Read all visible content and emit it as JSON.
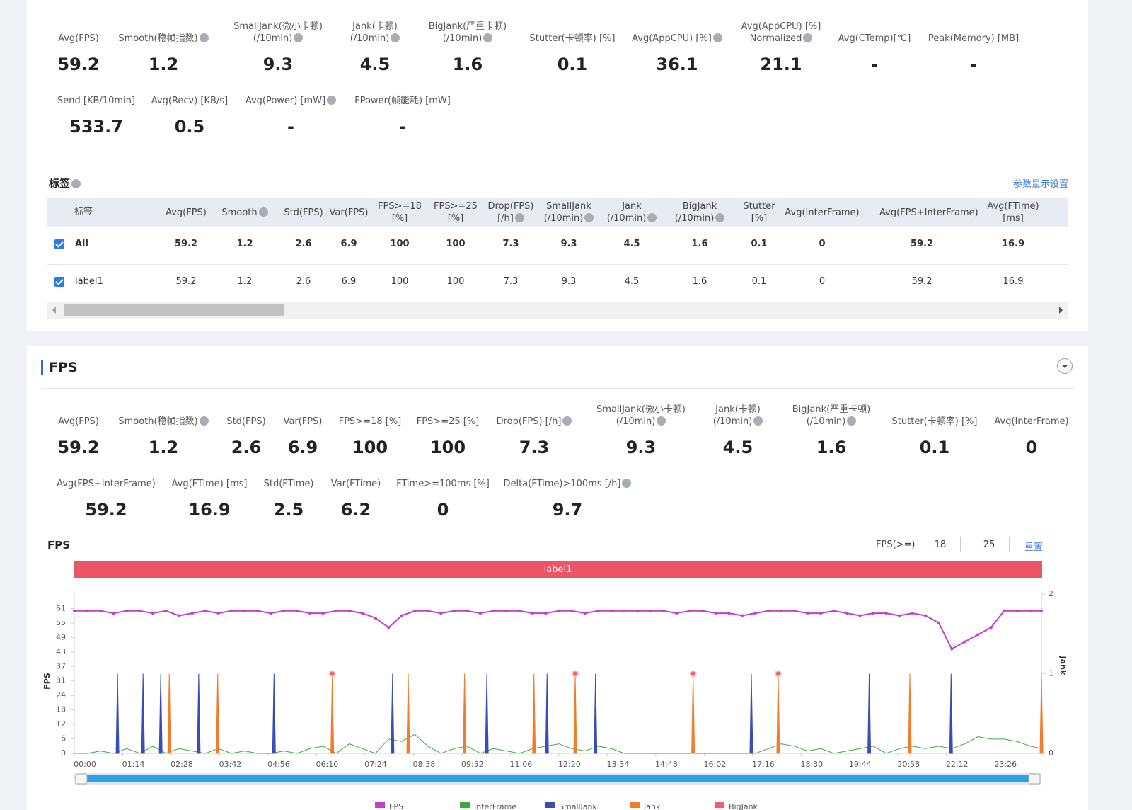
{
  "summary": {
    "rows": [
      [
        {
          "label": [
            "Avg(FPS)"
          ],
          "value": 59.2
        },
        {
          "label": [
            "Smooth(稳帧指数)"
          ],
          "help": true,
          "value": 1.2
        },
        {
          "label": [
            "SmallJank(微小卡顿)",
            "(/10min)"
          ],
          "help": true,
          "value": 9.3
        },
        {
          "label": [
            "Jank(卡顿)",
            "(/10min)"
          ],
          "help": true,
          "value": 4.5
        },
        {
          "label": [
            "BigJank(严重卡顿)",
            "(/10min)"
          ],
          "help": true,
          "value": 1.6
        },
        {
          "label": [
            "Stutter(卡顿率) [%]"
          ],
          "value": 0.1
        },
        {
          "label": [
            "Avg(AppCPU) [%]"
          ],
          "help": true,
          "value": 36.1
        },
        {
          "label": [
            "Avg(AppCPU) [%]",
            "Normalized"
          ],
          "help": true,
          "value": 21.1
        },
        {
          "label": [
            "Avg(CTemp)[℃]"
          ],
          "value": "-"
        },
        {
          "label": [
            "Peak(Memory) [MB]"
          ],
          "value": "-"
        }
      ],
      [
        {
          "label": [
            "Send [KB/10min]"
          ],
          "value": 533.7
        },
        {
          "label": [
            "Avg(Recv) [KB/s]"
          ],
          "value": 0.5
        },
        {
          "label": [
            "Avg(Power) [mW]"
          ],
          "help": true,
          "value": "-"
        },
        {
          "label": [
            "FPower(帧能耗) [mW]"
          ],
          "value": "-"
        }
      ]
    ]
  },
  "tags": {
    "title": "标签",
    "help": true,
    "settings_link": "参数显示设置",
    "columns": [
      {
        "label": [
          "标签"
        ]
      },
      {
        "label": [
          "Avg(FPS)"
        ]
      },
      {
        "label": [
          "Smooth"
        ],
        "help": true
      },
      {
        "label": [
          "Std(FPS)"
        ]
      },
      {
        "label": [
          "Var(FPS)"
        ]
      },
      {
        "label": [
          "FPS>=18",
          "[%]"
        ]
      },
      {
        "label": [
          "FPS>=25",
          "[%]"
        ]
      },
      {
        "label": [
          "Drop(FPS)",
          "[/h]"
        ],
        "help": true
      },
      {
        "label": [
          "SmallJank",
          "(/10min)"
        ],
        "help": true
      },
      {
        "label": [
          "Jank",
          "(/10min)"
        ],
        "help": true
      },
      {
        "label": [
          "BigJank",
          "(/10min)"
        ],
        "help": true
      },
      {
        "label": [
          "Stutter",
          "[%]"
        ]
      },
      {
        "label": [
          "Avg(InterFrame)"
        ]
      },
      {
        "label": [
          "Avg(FPS+InterFrame)"
        ]
      },
      {
        "label": [
          "Avg(FTime)",
          "[ms]"
        ]
      }
    ],
    "rows": [
      {
        "checked": true,
        "cells": [
          "All",
          59.2,
          1.2,
          2.6,
          6.9,
          100,
          100,
          7.3,
          9.3,
          4.5,
          1.6,
          0.1,
          0,
          59.2,
          16.9
        ]
      },
      {
        "checked": true,
        "cells": [
          "label1",
          59.2,
          1.2,
          2.6,
          6.9,
          100,
          100,
          7.3,
          9.3,
          4.5,
          1.6,
          0.1,
          0,
          59.2,
          16.9
        ]
      }
    ]
  },
  "fps_section": {
    "title": "FPS",
    "rows": [
      [
        {
          "label": [
            "Avg(FPS)"
          ],
          "value": 59.2
        },
        {
          "label": [
            "Smooth(稳帧指数)"
          ],
          "help": true,
          "value": 1.2
        },
        {
          "label": [
            "Std(FPS)"
          ],
          "value": 2.6
        },
        {
          "label": [
            "Var(FPS)"
          ],
          "value": 6.9
        },
        {
          "label": [
            "FPS>=18 [%]"
          ],
          "value": 100
        },
        {
          "label": [
            "FPS>=25 [%]"
          ],
          "value": 100
        },
        {
          "label": [
            "Drop(FPS) [/h]"
          ],
          "help": true,
          "value": 7.3
        },
        {
          "label": [
            "SmallJank(微小卡顿)",
            "(/10min)"
          ],
          "help": true,
          "value": 9.3
        },
        {
          "label": [
            "Jank(卡顿)",
            "(/10min)"
          ],
          "help": true,
          "value": 4.5
        },
        {
          "label": [
            "BigJank(严重卡顿)",
            "(/10min)"
          ],
          "help": true,
          "value": 1.6
        },
        {
          "label": [
            "Stutter(卡顿率) [%]"
          ],
          "value": 0.1
        },
        {
          "label": [
            "Avg(InterFrame)"
          ],
          "value": 0
        }
      ],
      [
        {
          "label": [
            "Avg(FPS+InterFrame)"
          ],
          "value": 59.2
        },
        {
          "label": [
            "Avg(FTime) [ms]"
          ],
          "value": 16.9
        },
        {
          "label": [
            "Std(FTime)"
          ],
          "value": 2.5
        },
        {
          "label": [
            "Var(FTime)"
          ],
          "value": 6.2
        },
        {
          "label": [
            "FTime>=100ms [%]"
          ],
          "value": 0
        },
        {
          "label": [
            "Delta(FTime)>100ms [/h]"
          ],
          "help": true,
          "value": 9.7
        }
      ]
    ]
  },
  "chart_data": {
    "type": "line",
    "title": "FPS",
    "threshold_label": "FPS(>=)",
    "thresholds": [
      18,
      25
    ],
    "reset_label": "重置",
    "band_label": "label1",
    "band_color": "#eb5566",
    "y_label": "FPS",
    "y2_label": "Jank",
    "xlim": [
      0,
      1477
    ],
    "xticks": [
      {
        "value": 0,
        "label": "00:00"
      },
      {
        "value": 74,
        "label": "01:14"
      },
      {
        "value": 148,
        "label": "02:28"
      },
      {
        "value": 222,
        "label": "03:42"
      },
      {
        "value": 296,
        "label": "04:56"
      },
      {
        "value": 370,
        "label": "06:10"
      },
      {
        "value": 444,
        "label": "07:24"
      },
      {
        "value": 518,
        "label": "08:38"
      },
      {
        "value": 592,
        "label": "09:52"
      },
      {
        "value": 666,
        "label": "11:06"
      },
      {
        "value": 740,
        "label": "12:20"
      },
      {
        "value": 814,
        "label": "13:34"
      },
      {
        "value": 888,
        "label": "14:48"
      },
      {
        "value": 962,
        "label": "16:02"
      },
      {
        "value": 1036,
        "label": "17:16"
      },
      {
        "value": 1110,
        "label": "18:30"
      },
      {
        "value": 1184,
        "label": "19:44"
      },
      {
        "value": 1258,
        "label": "20:58"
      },
      {
        "value": 1332,
        "label": "22:12"
      },
      {
        "value": 1406,
        "label": "23:26"
      }
    ],
    "ylim": [
      0,
      67.1
    ],
    "yticks": [
      0,
      {
        "value": 6.1,
        "label": "6"
      },
      {
        "value": 12.2,
        "label": "12"
      },
      {
        "value": 18.3,
        "label": "18"
      },
      {
        "value": 24.4,
        "label": "24"
      },
      {
        "value": 30.5,
        "label": "31"
      },
      {
        "value": 36.6,
        "label": "37"
      },
      {
        "value": 42.7,
        "label": "43"
      },
      {
        "value": 48.8,
        "label": "49"
      },
      {
        "value": 54.9,
        "label": "55"
      },
      61
    ],
    "y2lim": [
      0,
      2
    ],
    "y2ticks": [
      0,
      1,
      2
    ],
    "x": [
      0,
      20,
      40,
      60,
      80,
      100,
      120,
      140,
      160,
      180,
      200,
      220,
      240,
      260,
      280,
      300,
      320,
      340,
      360,
      380,
      400,
      420,
      440,
      460,
      480,
      500,
      520,
      540,
      560,
      580,
      600,
      620,
      640,
      660,
      680,
      700,
      720,
      740,
      760,
      780,
      800,
      820,
      840,
      860,
      880,
      900,
      920,
      940,
      960,
      980,
      1000,
      1020,
      1040,
      1060,
      1080,
      1100,
      1120,
      1140,
      1160,
      1180,
      1200,
      1220,
      1240,
      1260,
      1280,
      1300,
      1320,
      1340,
      1360,
      1380,
      1400,
      1420,
      1440,
      1460,
      1477
    ],
    "series": [
      {
        "name": "FPS",
        "color": "#c23fc9",
        "values": [
          60,
          60,
          60,
          59,
          60,
          60,
          59,
          60,
          58,
          59,
          60,
          59,
          60,
          60,
          60,
          59,
          60,
          60,
          59,
          59,
          60,
          60,
          59,
          57,
          53,
          58,
          60,
          60,
          59,
          60,
          60,
          59,
          60,
          60,
          60,
          59,
          59,
          60,
          60,
          59,
          60,
          60,
          60,
          60,
          60,
          60,
          59,
          60,
          60,
          59,
          59,
          58,
          59,
          60,
          60,
          60,
          59,
          59,
          60,
          59,
          58,
          59,
          59,
          58,
          59,
          58,
          55,
          44,
          47,
          50,
          53,
          60,
          60,
          60,
          60
        ]
      },
      {
        "name": "InterFrame",
        "color": "#3aaa3a",
        "values": [
          0,
          0,
          1,
          0,
          2,
          0,
          3,
          0,
          2,
          1,
          0,
          2,
          0,
          1,
          0,
          0,
          1,
          0,
          2,
          3,
          0,
          4,
          2,
          0,
          6,
          5,
          8,
          3,
          0,
          2,
          3,
          0,
          2,
          1,
          0,
          2,
          3,
          4,
          2,
          1,
          3,
          2,
          0,
          0,
          0,
          0,
          0,
          0,
          0,
          0,
          0,
          0,
          0,
          2,
          4,
          3,
          1,
          2,
          0,
          1,
          2,
          3,
          0,
          2,
          3,
          2,
          3,
          2,
          4,
          7,
          6,
          6,
          5,
          3,
          2
        ]
      }
    ],
    "spikes": [
      {
        "name": "SmallJank",
        "color": "#3a4cb5",
        "axis": "y2",
        "x": [
          66,
          105,
          132,
          190,
          305,
          486,
          630,
          722,
          796,
          1034,
          1214,
          1339
        ],
        "values": [
          1,
          1,
          1,
          1,
          1,
          1,
          1,
          1,
          1,
          1,
          1,
          1
        ]
      },
      {
        "name": "Jank",
        "color": "#f07c2c",
        "axis": "y2",
        "x": [
          145,
          219,
          510,
          596,
          702,
          1276,
          1477
        ],
        "values": [
          1,
          1,
          1,
          1,
          1,
          1,
          1
        ]
      },
      {
        "name": "BigJank",
        "color": "#f0606a",
        "axis": "y2",
        "x": [
          394,
          765,
          945,
          1075
        ],
        "values": [
          1,
          1,
          1,
          1
        ]
      }
    ]
  }
}
